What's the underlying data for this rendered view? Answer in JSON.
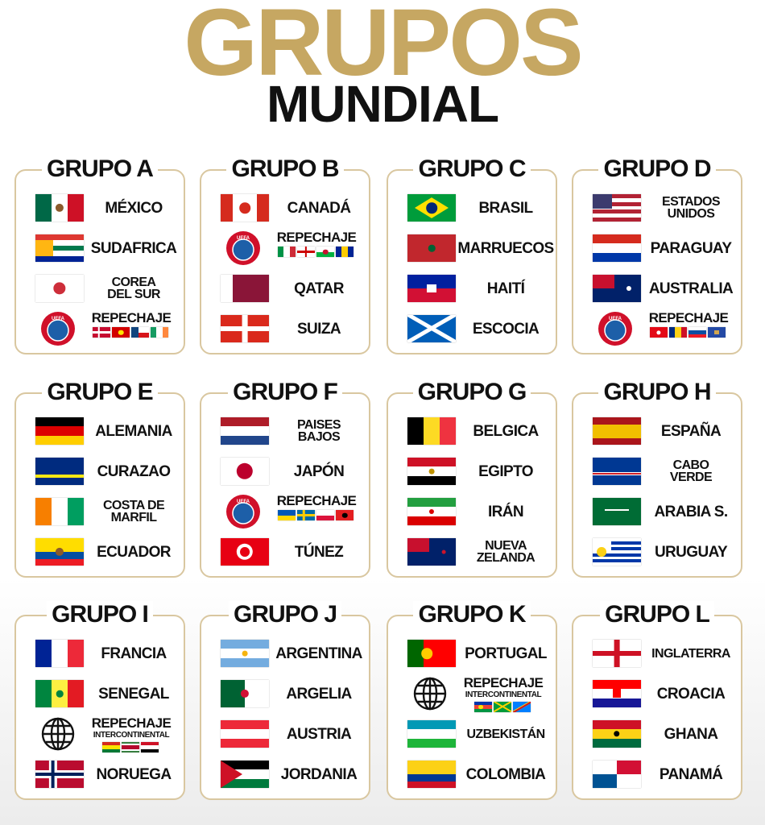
{
  "header": {
    "title": "GRUPOS",
    "subtitle": "MUNDIAL"
  },
  "groups": [
    {
      "name": "GRUPO A",
      "teams": [
        "MÉXICO",
        "SUDAFRICA",
        "COREA\nDEL SUR",
        "REPECHAJE"
      ]
    },
    {
      "name": "GRUPO B",
      "teams": [
        "CANADÁ",
        "REPECHAJE",
        "QATAR",
        "SUIZA"
      ]
    },
    {
      "name": "GRUPO C",
      "teams": [
        "BRASIL",
        "MARRUECOS",
        "HAITÍ",
        "ESCOCIA"
      ]
    },
    {
      "name": "GRUPO D",
      "teams": [
        "ESTADOS\nUNIDOS",
        "PARAGUAY",
        "AUSTRALIA",
        "REPECHAJE"
      ]
    },
    {
      "name": "GRUPO E",
      "teams": [
        "ALEMANIA",
        "CURAZAO",
        "COSTA DE\nMARFIL",
        "ECUADOR"
      ]
    },
    {
      "name": "GRUPO F",
      "teams": [
        "PAISES\nBAJOS",
        "JAPÓN",
        "REPECHAJE",
        "TÚNEZ"
      ]
    },
    {
      "name": "GRUPO G",
      "teams": [
        "BELGICA",
        "EGIPTO",
        "IRÁN",
        "NUEVA\nZELANDA"
      ]
    },
    {
      "name": "GRUPO H",
      "teams": [
        "ESPAÑA",
        "CABO\nVERDE",
        "ARABIA S.",
        "URUGUAY"
      ]
    },
    {
      "name": "GRUPO I",
      "teams": [
        "FRANCIA",
        "SENEGAL",
        {
          "name": "REPECHAJE",
          "note": "INTERCONTINENTAL"
        },
        "NORUEGA"
      ]
    },
    {
      "name": "GRUPO J",
      "teams": [
        "ARGENTINA",
        "ARGELIA",
        "AUSTRIA",
        "JORDANIA"
      ]
    },
    {
      "name": "GRUPO K",
      "teams": [
        "PORTUGAL",
        {
          "name": "REPECHAJE",
          "note": "INTERCONTINENTAL"
        },
        "UZBEKISTÁN",
        "COLOMBIA"
      ]
    },
    {
      "name": "GRUPO L",
      "teams": [
        "INGLATERRA",
        "CROACIA",
        "GHANA",
        "PANAMÁ"
      ]
    }
  ]
}
